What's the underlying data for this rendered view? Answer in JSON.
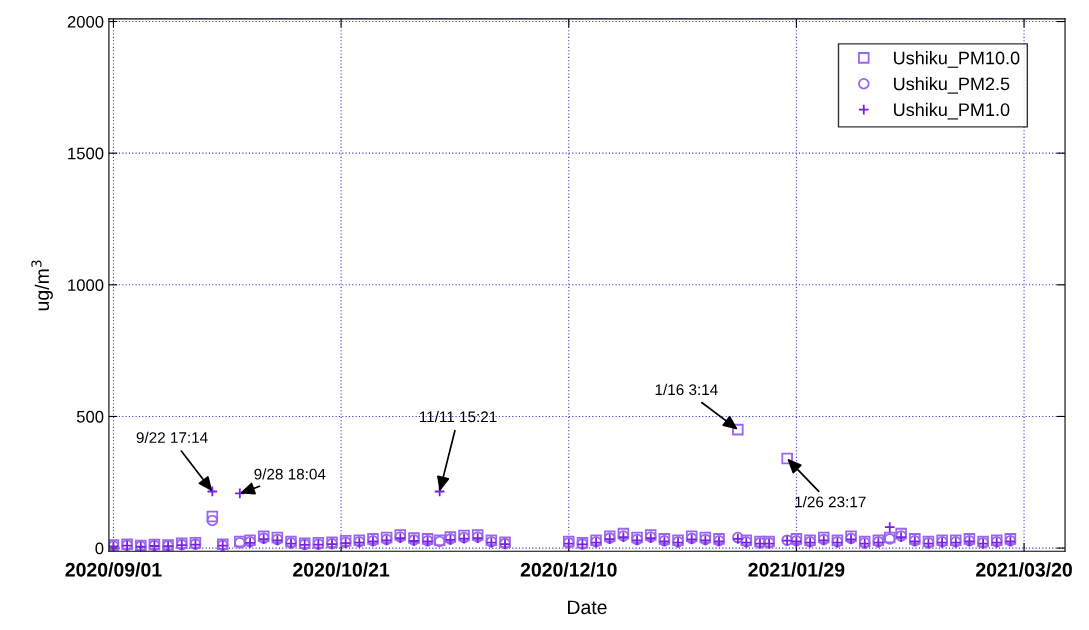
{
  "chart_data": {
    "type": "scatter",
    "xlabel": "Date",
    "ylabel": "ug/m$^{3}$",
    "x": [
      "2020-09-01",
      "2020-09-04",
      "2020-09-07",
      "2020-09-10",
      "2020-09-13",
      "2020-09-16",
      "2020-09-19",
      "2020-09-22T17:14",
      "2020-09-25",
      "2020-09-28T18:04",
      "2020-10-01",
      "2020-10-04",
      "2020-10-07",
      "2020-10-10",
      "2020-10-13",
      "2020-10-16",
      "2020-10-19",
      "2020-10-22",
      "2020-10-25",
      "2020-10-28",
      "2020-10-31",
      "2020-11-03",
      "2020-11-06",
      "2020-11-09",
      "2020-11-11T15:21",
      "2020-11-14",
      "2020-11-17",
      "2020-11-20",
      "2020-11-23",
      "2020-11-26",
      "2020-12-10",
      "2020-12-13",
      "2020-12-16",
      "2020-12-19",
      "2020-12-22",
      "2020-12-25",
      "2020-12-28",
      "2020-12-31",
      "2021-01-03",
      "2021-01-06",
      "2021-01-09",
      "2021-01-12",
      "2021-01-16T03:14",
      "2021-01-18",
      "2021-01-21",
      "2021-01-23",
      "2021-01-26T23:17",
      "2021-01-29",
      "2021-02-01",
      "2021-02-04",
      "2021-02-07",
      "2021-02-10",
      "2021-02-13",
      "2021-02-16",
      "2021-02-18T12:00",
      "2021-02-21",
      "2021-02-24",
      "2021-02-27",
      "2021-03-02",
      "2021-03-05",
      "2021-03-08",
      "2021-03-11",
      "2021-03-14",
      "2021-03-17"
    ],
    "series": [
      {
        "name": "Ushiku_PM10.0",
        "color": "#9a66ee",
        "marker": "square",
        "values": [
          12,
          15,
          10,
          14,
          12,
          18,
          20,
          120,
          15,
          25,
          30,
          45,
          40,
          25,
          18,
          20,
          22,
          28,
          30,
          35,
          40,
          50,
          38,
          35,
          30,
          42,
          48,
          50,
          30,
          22,
          25,
          20,
          30,
          45,
          55,
          40,
          50,
          35,
          30,
          45,
          40,
          35,
          450,
          30,
          25,
          25,
          340,
          35,
          30,
          40,
          30,
          45,
          25,
          30,
          40,
          55,
          35,
          25,
          30,
          30,
          35,
          25,
          30,
          35
        ]
      },
      {
        "name": "Ushiku_PM2.5",
        "color": "#9a66ee",
        "marker": "circle",
        "values": [
          8,
          11,
          7,
          10,
          9,
          13,
          15,
          105,
          11,
          20,
          24,
          38,
          33,
          20,
          14,
          15,
          17,
          22,
          24,
          28,
          33,
          42,
          31,
          28,
          25,
          35,
          40,
          42,
          24,
          17,
          20,
          16,
          24,
          38,
          46,
          33,
          42,
          28,
          24,
          37,
          33,
          28,
          40,
          24,
          20,
          20,
          30,
          28,
          24,
          33,
          24,
          37,
          20,
          24,
          35,
          46,
          28,
          20,
          24,
          24,
          28,
          20,
          24,
          28
        ]
      },
      {
        "name": "Ushiku_PM1.0",
        "color": "#7a1fe0",
        "marker": "cross",
        "values": [
          6,
          9,
          5,
          8,
          7,
          11,
          13,
          215,
          9,
          208,
          20,
          34,
          29,
          17,
          12,
          13,
          15,
          19,
          21,
          25,
          29,
          38,
          27,
          25,
          215,
          31,
          36,
          38,
          21,
          15,
          17,
          14,
          21,
          34,
          42,
          29,
          38,
          25,
          21,
          33,
          29,
          25,
          35,
          21,
          17,
          17,
          28,
          25,
          21,
          29,
          21,
          33,
          17,
          21,
          80,
          42,
          25,
          17,
          21,
          21,
          25,
          17,
          21,
          25
        ]
      }
    ],
    "xlim": [
      "2020-08-31",
      "2021-03-29"
    ],
    "xticks": [
      {
        "value": "2020-09-01",
        "label": "2020/09/01"
      },
      {
        "value": "2020-10-21",
        "label": "2020/10/21"
      },
      {
        "value": "2020-12-10",
        "label": "2020/12/10"
      },
      {
        "value": "2021-01-29",
        "label": "2021/01/29"
      },
      {
        "value": "2021-03-20",
        "label": "2021/03/20"
      }
    ],
    "ylim": [
      -12,
      2010
    ],
    "yticks": [
      0,
      500,
      1000,
      1500,
      2000
    ],
    "grid": true,
    "legend": "top right",
    "annotations": [
      {
        "text": "9/22 17:14",
        "x": "2020-09-22T17:14",
        "y": 215
      },
      {
        "text": "9/28 18:04",
        "x": "2020-09-28T18:04",
        "y": 208
      },
      {
        "text": "11/11 15:21",
        "x": "2020-11-11T15:21",
        "y": 215
      },
      {
        "text": "1/16 3:14",
        "x": "2021-01-16T03:14",
        "y": 450
      },
      {
        "text": "1/26 23:17",
        "x": "2021-01-26T23:17",
        "y": 340
      }
    ]
  }
}
